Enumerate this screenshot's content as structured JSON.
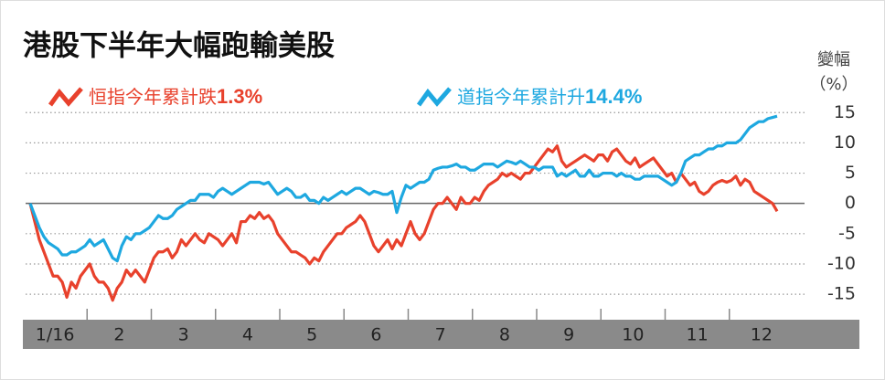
{
  "chart_data": {
    "type": "line",
    "title": "港股下半年大幅跑輸美股",
    "y_label_top": "變幅",
    "y_label_unit": "（%）",
    "months": [
      "1/16",
      "2",
      "3",
      "4",
      "5",
      "6",
      "7",
      "8",
      "9",
      "10",
      "11",
      "12"
    ],
    "ylim": [
      -18,
      17
    ],
    "yticks": [
      15,
      10,
      5,
      0,
      -5,
      -10,
      -15
    ],
    "grid": true,
    "series": [
      {
        "name": "恒指今年累計跌",
        "legend_value": "1.3%",
        "color": "#e8412c",
        "values": [
          0,
          -3,
          -6,
          -8,
          -10,
          -12,
          -12,
          -13,
          -15.5,
          -13,
          -14,
          -12,
          -11,
          -10,
          -12,
          -13,
          -13,
          -14,
          -16,
          -14,
          -13,
          -11,
          -12,
          -11,
          -12,
          -13,
          -11,
          -9,
          -8,
          -8,
          -7.5,
          -9,
          -8,
          -6,
          -7,
          -6,
          -5,
          -6,
          -6.5,
          -5,
          -5.5,
          -6,
          -7,
          -6,
          -5,
          -6.5,
          -3,
          -3,
          -2,
          -2.5,
          -1.5,
          -2.5,
          -2,
          -3,
          -5,
          -6,
          -7,
          -8,
          -8,
          -8.5,
          -9,
          -10,
          -9,
          -9.5,
          -8,
          -7,
          -6,
          -5,
          -5,
          -4,
          -3.5,
          -3,
          -2,
          -3,
          -5,
          -7,
          -8,
          -7,
          -6,
          -7.5,
          -6,
          -7,
          -5,
          -3,
          -5,
          -6,
          -5,
          -3,
          -1,
          0,
          0,
          1,
          0,
          -1,
          1,
          0,
          0,
          1,
          0.5,
          2,
          3,
          3.5,
          4,
          5,
          4.5,
          5,
          4.5,
          4,
          5,
          5,
          6,
          7,
          8,
          9,
          8.5,
          9.5,
          7,
          6,
          6.5,
          7,
          7.5,
          8,
          7.5,
          7,
          8,
          8,
          7,
          8.5,
          9,
          8,
          7,
          6.5,
          7.5,
          6,
          6.5,
          7,
          7.5,
          6.5,
          5.5,
          4.5,
          5,
          3.5,
          5,
          4,
          3,
          3.5,
          2,
          1.5,
          2,
          3,
          3.5,
          3.8,
          3.5,
          3.8,
          4.5,
          3,
          4,
          3.5,
          2,
          1.5,
          1,
          0.5,
          0,
          -1.3
        ]
      },
      {
        "name": "道指今年累計升",
        "legend_value": "14.4%",
        "color": "#1ea8e0",
        "values": [
          0,
          -2,
          -4,
          -5.5,
          -6.5,
          -7,
          -7.5,
          -8.5,
          -8.5,
          -8,
          -8,
          -7.5,
          -7,
          -6,
          -7,
          -6.5,
          -6,
          -7.5,
          -9,
          -9.5,
          -7,
          -5.5,
          -6,
          -5,
          -5,
          -4.5,
          -4,
          -3,
          -2,
          -2.5,
          -2.5,
          -2,
          -1,
          -0.5,
          0,
          0.5,
          0.5,
          1.5,
          1.5,
          1.5,
          1,
          2,
          2.5,
          2,
          1.5,
          2,
          2.5,
          3,
          3.5,
          3.5,
          3.5,
          3.2,
          3.5,
          2.5,
          1.5,
          2,
          2.5,
          2,
          1,
          1,
          1.5,
          0.5,
          0.5,
          0,
          1,
          0.5,
          1,
          1.5,
          2,
          1.5,
          2,
          2.5,
          2.5,
          2,
          1.5,
          2,
          1.8,
          1.5,
          1.5,
          2,
          -1.5,
          1,
          3,
          2.5,
          3,
          3.5,
          3.5,
          4,
          5.5,
          5.8,
          6,
          6,
          6.2,
          6.5,
          6,
          6,
          5.5,
          5.5,
          6,
          6.5,
          6.5,
          6.5,
          6,
          6.5,
          7,
          6.8,
          6.5,
          7,
          6.5,
          6,
          6,
          5.5,
          6,
          6,
          6,
          4.5,
          5,
          4.5,
          5,
          5.5,
          4.5,
          4.5,
          5.5,
          4.5,
          4.5,
          5,
          5,
          5,
          4.5,
          5,
          4.5,
          4.5,
          4,
          4,
          4.5,
          4.5,
          4.5,
          4.5,
          4,
          3.5,
          3,
          3.5,
          5,
          7,
          7.5,
          8,
          8,
          8.5,
          9,
          9,
          9.5,
          9.5,
          10,
          10,
          10,
          10.5,
          11.5,
          12.5,
          13,
          13.5,
          13.5,
          14,
          14.2,
          14.4
        ]
      }
    ]
  }
}
